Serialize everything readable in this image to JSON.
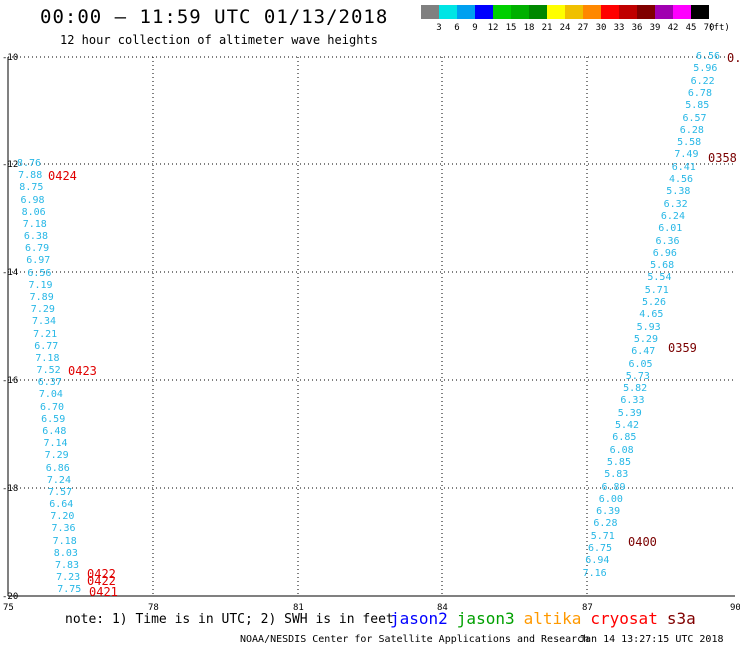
{
  "header": {
    "title": "00:00 – 11:59 UTC 01/13/2018",
    "subtitle": "12 hour collection of altimeter wave heights"
  },
  "legend": {
    "colors": [
      "#808080",
      "#00e5e5",
      "#00a0f0",
      "#0000ff",
      "#00d000",
      "#00b000",
      "#008800",
      "#ffff00",
      "#f0c000",
      "#ff8800",
      "#ff0000",
      "#c00000",
      "#800000",
      "#a000b0",
      "#ff00ff",
      "#000000"
    ],
    "labels": [
      "3",
      "6",
      "9",
      "12",
      "15",
      "18",
      "21",
      "24",
      "27",
      "30",
      "33",
      "36",
      "39",
      "42",
      "45",
      "70"
    ],
    "unit": "(ft)"
  },
  "axes": {
    "y_labels": [
      "-10",
      "-12",
      "-14",
      "-16",
      "-18",
      "-20"
    ],
    "x_labels": [
      "75",
      "78",
      "81",
      "84",
      "87",
      "90"
    ]
  },
  "tracks": {
    "west_values": [
      "8.76",
      "7.88",
      "8.75",
      "6.98",
      "8.06",
      "7.18",
      "6.38",
      "6.79",
      "6.97",
      "6.56",
      "7.19",
      "7.89",
      "7.29",
      "7.34",
      "7.21",
      "6.77",
      "7.18",
      "7.52",
      "6.37",
      "7.04",
      "6.70",
      "6.59",
      "6.48",
      "7.14",
      "7.29",
      "6.86",
      "7.24",
      "7.57",
      "6.64",
      "7.20",
      "7.36",
      "7.18",
      "8.03",
      "7.83",
      "7.23",
      "7.75"
    ],
    "east_values": [
      "6.56",
      "5.96",
      "6.22",
      "6.78",
      "5.85",
      "6.57",
      "6.28",
      "5.58",
      "7.49",
      "6.41",
      "4.56",
      "5.38",
      "6.32",
      "6.24",
      "6.01",
      "6.36",
      "6.96",
      "5.68",
      "5.54",
      "5.71",
      "5.26",
      "4.65",
      "5.93",
      "5.29",
      "6.47",
      "6.05",
      "5.73",
      "5.82",
      "6.33",
      "5.39",
      "5.42",
      "6.85",
      "6.08",
      "5.85",
      "5.83",
      "6.89",
      "6.00",
      "6.39",
      "6.28",
      "5.71",
      "6.75",
      "6.94",
      "7.16"
    ],
    "west_times": [
      "0424",
      "0423",
      "0422",
      "0422",
      "0421"
    ],
    "east_times": [
      "0.",
      "0358",
      "0359",
      "0400"
    ]
  },
  "footer": {
    "note": "note: 1) Time is in UTC; 2) SWH is in feet",
    "satellites": [
      {
        "name": "jason2",
        "color": "#0000ff"
      },
      {
        "name": "jason3",
        "color": "#00a000"
      },
      {
        "name": "altika",
        "color": "#ff9900"
      },
      {
        "name": "cryosat",
        "color": "#ff0000"
      },
      {
        "name": "s3a",
        "color": "#800000"
      }
    ],
    "credit": "NOAA/NESDIS Center for Satellite Applications and Research",
    "timestamp": "Jan 14 13:27:15 UTC 2018"
  }
}
